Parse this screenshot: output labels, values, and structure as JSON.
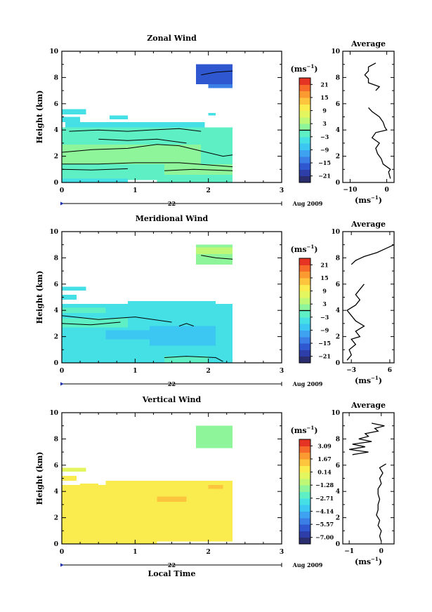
{
  "chart_data": [
    {
      "type": "heatmap",
      "title": "Zonal Wind",
      "ylabel": "Height (km)",
      "xlim": [
        0,
        3
      ],
      "ylim": [
        0,
        10
      ],
      "x_ticks": [
        "0",
        "1",
        "2",
        "3"
      ],
      "y_ticks": [
        "0",
        "2",
        "4",
        "6",
        "8",
        "10"
      ],
      "day_label": "22",
      "month_label": "Aug 2009",
      "colorbar": {
        "unit_base": "(ms",
        "unit_exp": "−1",
        "unit_close": ")",
        "labels": [
          "21",
          "15",
          "9",
          "3",
          "−3",
          "−9",
          "−15",
          "−21"
        ],
        "min": -24,
        "max": 24,
        "levels": 16,
        "zero_line": true
      },
      "blocks": [
        {
          "x0": 1.83,
          "x1": 2.33,
          "y0": 7.5,
          "y1": 9.0,
          "v": -18
        },
        {
          "x0": 2.0,
          "x1": 2.33,
          "y0": 7.2,
          "y1": 7.5,
          "v": -15
        },
        {
          "x0": 0.0,
          "x1": 0.33,
          "y0": 5.2,
          "y1": 5.6,
          "v": -6
        },
        {
          "x0": 0.0,
          "x1": 0.25,
          "y0": 4.6,
          "y1": 5.0,
          "v": -5
        },
        {
          "x0": 0.65,
          "x1": 0.9,
          "y0": 4.8,
          "y1": 5.1,
          "v": -5
        },
        {
          "x0": 2.0,
          "x1": 2.1,
          "y0": 5.1,
          "y1": 5.3,
          "v": -5
        },
        {
          "x0": 0.05,
          "x1": 1.95,
          "y0": 4.2,
          "y1": 4.6,
          "v": -4
        },
        {
          "x0": 0.0,
          "x1": 2.33,
          "y0": 0.2,
          "y1": 4.2,
          "v": -2
        },
        {
          "x0": 0.2,
          "x1": 1.7,
          "y0": 3.4,
          "y1": 3.9,
          "v": -1
        },
        {
          "x0": 0.0,
          "x1": 1.9,
          "y0": 1.4,
          "y1": 2.9,
          "v": 0
        },
        {
          "x0": 1.4,
          "x1": 2.33,
          "y0": 0.6,
          "y1": 1.4,
          "v": 0
        },
        {
          "x0": 0.0,
          "x1": 0.9,
          "y0": 0.0,
          "y1": 0.3,
          "v": -4
        },
        {
          "x0": 1.3,
          "x1": 2.33,
          "y0": 0.0,
          "y1": 0.3,
          "v": -3
        }
      ],
      "contours": [
        [
          [
            0.0,
            2.3
          ],
          [
            0.4,
            2.5
          ],
          [
            0.9,
            2.6
          ],
          [
            1.3,
            2.9
          ],
          [
            1.6,
            2.8
          ],
          [
            1.9,
            2.4
          ],
          [
            2.2,
            2.0
          ],
          [
            2.33,
            2.1
          ]
        ],
        [
          [
            0.0,
            1.4
          ],
          [
            0.5,
            1.4
          ],
          [
            1.0,
            1.5
          ],
          [
            1.6,
            1.5
          ],
          [
            2.1,
            1.3
          ],
          [
            2.33,
            1.2
          ]
        ],
        [
          [
            0.1,
            3.9
          ],
          [
            0.5,
            4.0
          ],
          [
            0.9,
            3.9
          ],
          [
            1.2,
            4.0
          ],
          [
            1.6,
            4.1
          ],
          [
            1.9,
            3.9
          ]
        ],
        [
          [
            0.5,
            3.3
          ],
          [
            0.9,
            3.2
          ],
          [
            1.3,
            3.3
          ],
          [
            1.7,
            3.0
          ]
        ],
        [
          [
            0.0,
            1.0
          ],
          [
            0.4,
            0.95
          ],
          [
            0.9,
            1.05
          ]
        ],
        [
          [
            1.4,
            0.9
          ],
          [
            1.8,
            1.0
          ],
          [
            2.33,
            0.9
          ]
        ],
        [
          [
            1.9,
            8.2
          ],
          [
            2.1,
            8.4
          ],
          [
            2.33,
            8.5
          ]
        ]
      ],
      "average": {
        "title": "Average",
        "xlim": [
          -12,
          2
        ],
        "x_ticks": [
          -10,
          0
        ],
        "x_tick_labels": [
          "−10",
          "0"
        ],
        "heights": [
          0.3,
          0.8,
          1.0,
          1.4,
          1.8,
          2.2,
          2.6,
          3.0,
          3.4,
          3.8,
          4.0,
          4.2,
          4.6,
          5.0,
          5.4,
          5.7,
          7.0,
          7.3,
          7.6,
          7.9,
          8.2,
          8.5,
          8.8,
          9.1
        ],
        "values": [
          1,
          0.5,
          1,
          -1,
          -1.5,
          -2.5,
          -3,
          -2,
          -4,
          -3,
          0,
          -0.5,
          -1,
          -2,
          -4,
          -5,
          -3,
          -2,
          -5,
          -5,
          -6,
          -5,
          -5,
          -3
        ]
      }
    },
    {
      "type": "heatmap",
      "title": "Meridional Wind",
      "ylabel": "Height (km)",
      "xlim": [
        0,
        3
      ],
      "ylim": [
        0,
        10
      ],
      "x_ticks": [
        "0",
        "1",
        "2",
        "3"
      ],
      "y_ticks": [
        "0",
        "2",
        "4",
        "6",
        "8",
        "10"
      ],
      "day_label": "22",
      "month_label": "Aug 2009",
      "colorbar": {
        "unit_base": "(ms",
        "unit_exp": "−1",
        "unit_close": ")",
        "labels": [
          "21",
          "15",
          "9",
          "3",
          "−3",
          "−9",
          "−15",
          "−21"
        ],
        "min": -24,
        "max": 24,
        "levels": 16,
        "zero_line": true
      },
      "blocks": [
        {
          "x0": 1.83,
          "x1": 2.33,
          "y0": 7.5,
          "y1": 9.0,
          "v": 2
        },
        {
          "x0": 1.83,
          "x1": 2.33,
          "y0": 8.3,
          "y1": 8.8,
          "v": 5
        },
        {
          "x0": 0.0,
          "x1": 0.33,
          "y0": 5.5,
          "y1": 5.8,
          "v": -5
        },
        {
          "x0": 0.0,
          "x1": 0.2,
          "y0": 4.8,
          "y1": 5.2,
          "v": -5
        },
        {
          "x0": 0.0,
          "x1": 2.33,
          "y0": 0.0,
          "y1": 4.5,
          "v": -5
        },
        {
          "x0": 0.9,
          "x1": 2.1,
          "y0": 4.2,
          "y1": 4.7,
          "v": -6
        },
        {
          "x0": 1.2,
          "x1": 2.1,
          "y0": 1.3,
          "y1": 2.8,
          "v": -9
        },
        {
          "x0": 0.6,
          "x1": 1.2,
          "y0": 1.8,
          "y1": 2.5,
          "v": -8
        },
        {
          "x0": 0.0,
          "x1": 0.9,
          "y0": 2.7,
          "y1": 3.4,
          "v": -2
        },
        {
          "x0": 0.0,
          "x1": 0.6,
          "y0": 3.8,
          "y1": 4.2,
          "v": -1
        },
        {
          "x0": 1.4,
          "x1": 2.0,
          "y0": 0.0,
          "y1": 0.5,
          "v": -2
        }
      ],
      "contours": [
        [
          [
            0.0,
            3.6
          ],
          [
            0.5,
            3.3
          ],
          [
            1.0,
            3.5
          ],
          [
            1.5,
            3.1
          ]
        ],
        [
          [
            0.0,
            3.0
          ],
          [
            0.4,
            2.9
          ],
          [
            0.8,
            3.1
          ]
        ],
        [
          [
            1.6,
            2.8
          ],
          [
            1.7,
            3.0
          ],
          [
            1.8,
            2.8
          ]
        ],
        [
          [
            1.4,
            0.4
          ],
          [
            1.7,
            0.5
          ],
          [
            2.1,
            0.4
          ],
          [
            2.2,
            0.1
          ]
        ],
        [
          [
            1.9,
            8.2
          ],
          [
            2.1,
            8.0
          ],
          [
            2.33,
            7.9
          ]
        ]
      ],
      "average": {
        "title": "Average",
        "xlim": [
          -5,
          7
        ],
        "x_ticks": [
          -3,
          6
        ],
        "x_tick_labels": [
          "−3",
          "6"
        ],
        "heights": [
          0.2,
          0.6,
          1.0,
          1.4,
          1.8,
          2.0,
          2.4,
          2.8,
          3.2,
          3.6,
          4.0,
          4.4,
          4.8,
          5.2,
          5.6,
          6.0,
          7.5,
          7.8,
          8.1,
          8.4,
          8.7,
          9.0
        ],
        "values": [
          -4,
          -3,
          -3.5,
          -2,
          -3,
          -1,
          -2,
          0,
          -2,
          -3,
          -4,
          -2,
          -1,
          -2,
          -1,
          0,
          -3,
          -2,
          0,
          3,
          5,
          7
        ]
      }
    },
    {
      "type": "heatmap",
      "title": "Vertical Wind",
      "ylabel": "Height (km)",
      "xlabel": "Local Time",
      "xlim": [
        0,
        3
      ],
      "ylim": [
        0,
        10
      ],
      "x_ticks": [
        "0",
        "1",
        "2",
        "3"
      ],
      "y_ticks": [
        "0",
        "2",
        "4",
        "6",
        "8",
        "10"
      ],
      "day_label": "22",
      "month_label": "Aug 2009",
      "colorbar": {
        "unit_base": "(ms",
        "unit_exp": "−1",
        "unit_close": ")",
        "labels": [
          "3.09",
          "1.67",
          "0.14",
          "−1.28",
          "−2.71",
          "−4.14",
          "−5.57",
          "−7.00"
        ],
        "min": -7.7,
        "max": 3.8,
        "levels": 16,
        "zero_line": false
      },
      "blocks": [
        {
          "x0": 1.83,
          "x1": 2.33,
          "y0": 7.3,
          "y1": 9.0,
          "v": -1.6
        },
        {
          "x0": 0.0,
          "x1": 0.33,
          "y0": 5.5,
          "y1": 5.8,
          "v": 0.2
        },
        {
          "x0": 0.0,
          "x1": 0.2,
          "y0": 4.8,
          "y1": 5.2,
          "v": 0.3
        },
        {
          "x0": 0.0,
          "x1": 2.33,
          "y0": 0.2,
          "y1": 4.5,
          "v": 0.4
        },
        {
          "x0": 0.6,
          "x1": 2.33,
          "y0": 4.4,
          "y1": 4.8,
          "v": 0.4
        },
        {
          "x0": 1.3,
          "x1": 1.7,
          "y0": 3.2,
          "y1": 3.6,
          "v": 1.0
        },
        {
          "x0": 2.0,
          "x1": 2.2,
          "y0": 4.2,
          "y1": 4.5,
          "v": 1.0
        },
        {
          "x0": 0.25,
          "x1": 0.5,
          "y0": 4.3,
          "y1": 4.6,
          "v": 0.9
        },
        {
          "x0": 0.0,
          "x1": 1.3,
          "y0": 0.0,
          "y1": 0.3,
          "v": 0.4
        }
      ],
      "contours": [],
      "average": {
        "title": "Average",
        "xlim": [
          -1.2,
          0.4
        ],
        "x_ticks": [
          -1,
          0
        ],
        "x_tick_labels": [
          "−1",
          "0"
        ],
        "heights": [
          0.2,
          0.6,
          1.0,
          1.4,
          1.8,
          2.2,
          2.6,
          3.0,
          3.4,
          3.8,
          4.2,
          4.6,
          5.0,
          5.4,
          5.8,
          6.1,
          6.8,
          7.0,
          7.2,
          7.4,
          7.6,
          7.8,
          8.0,
          8.2,
          8.4,
          8.6,
          8.8,
          9.0,
          9.2
        ],
        "values": [
          0,
          -0.05,
          0,
          -0.1,
          -0.05,
          -0.15,
          -0.1,
          -0.1,
          -0.05,
          -0.1,
          -0.1,
          0,
          -0.05,
          0.05,
          -0.05,
          0.15,
          -0.9,
          -0.4,
          -1.0,
          -0.5,
          -0.9,
          -0.3,
          -0.7,
          -0.4,
          -0.5,
          -0.1,
          -0.2,
          0.1,
          -0.3
        ]
      }
    }
  ]
}
